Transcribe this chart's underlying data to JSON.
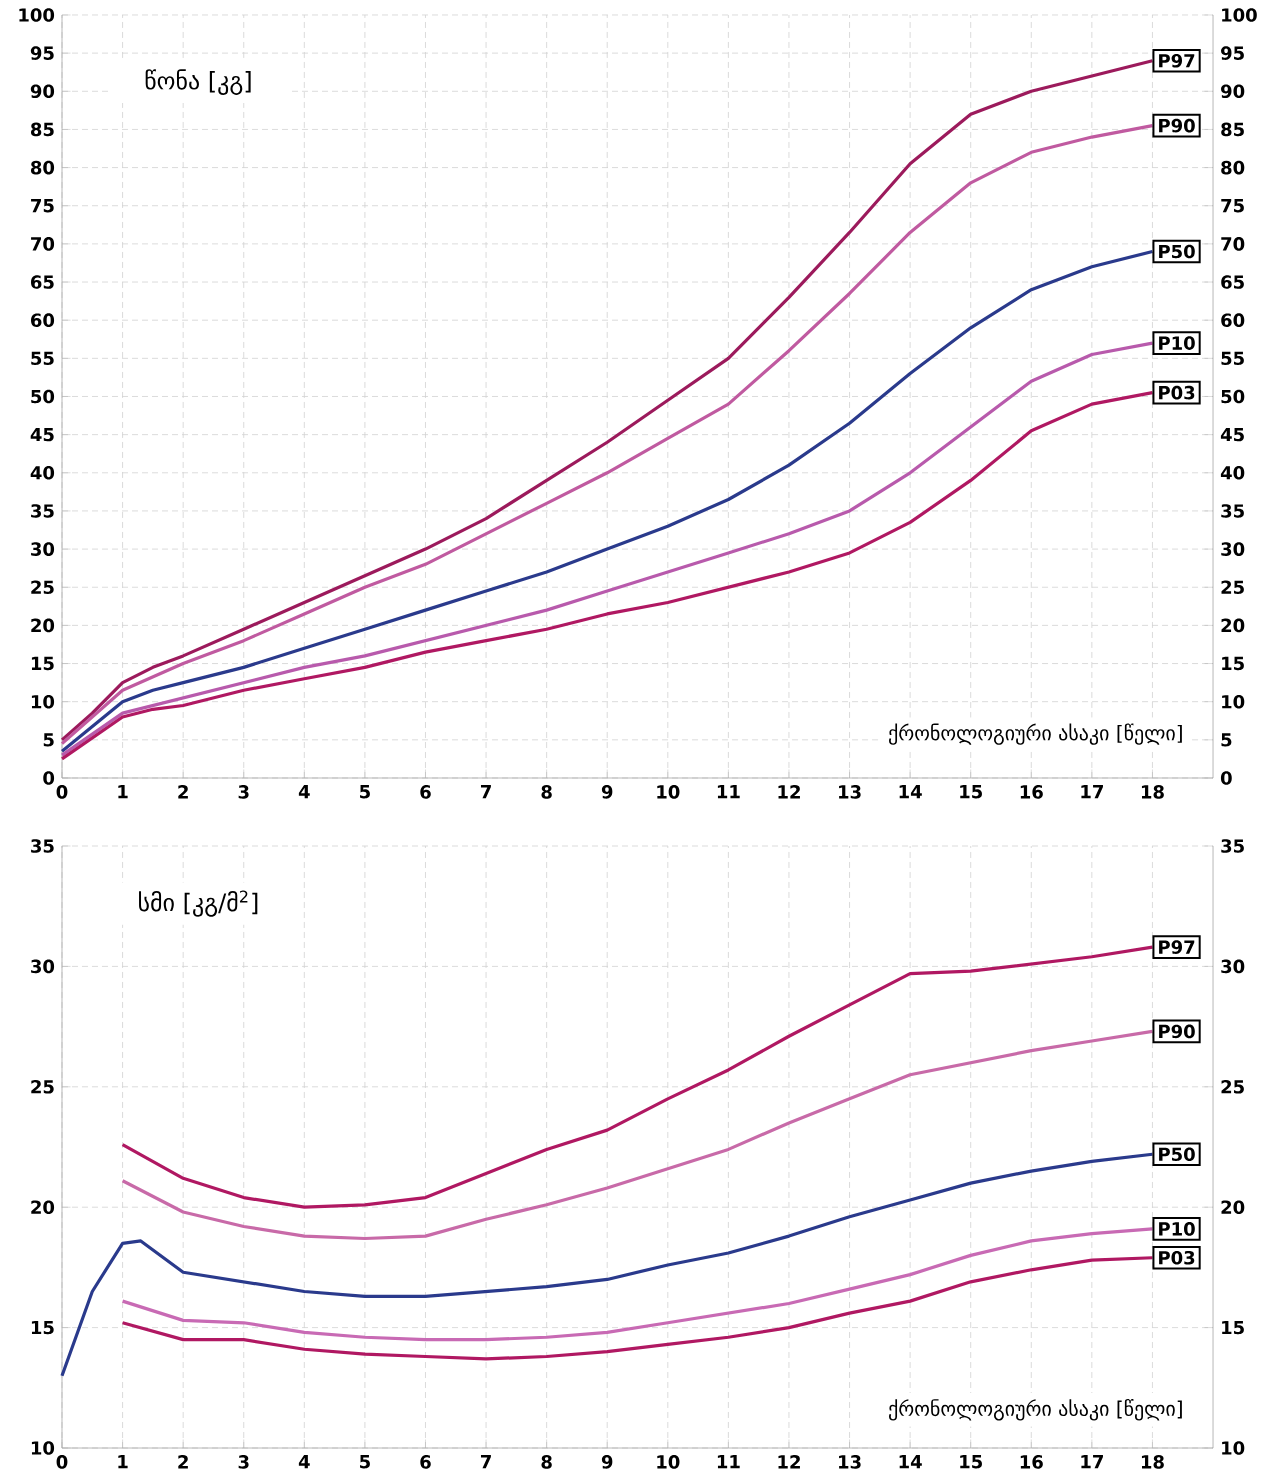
{
  "chart_data": [
    {
      "type": "line",
      "ylabel": "წონა [კგ]",
      "xlabel": "ქრონოლოგიური ასაკი [წელი]",
      "xlim": [
        0,
        19
      ],
      "xticks": [
        0,
        1,
        2,
        3,
        4,
        5,
        6,
        7,
        8,
        9,
        10,
        11,
        12,
        13,
        14,
        15,
        16,
        17,
        18
      ],
      "ylim": [
        0,
        100
      ],
      "yticks": [
        0,
        5,
        10,
        15,
        20,
        25,
        30,
        35,
        40,
        45,
        50,
        55,
        60,
        65,
        70,
        75,
        80,
        85,
        90,
        95,
        100
      ],
      "y2lim": [
        0,
        100
      ],
      "y2ticks": [
        0,
        5,
        10,
        15,
        20,
        25,
        30,
        35,
        40,
        45,
        50,
        55,
        60,
        65,
        70,
        75,
        80,
        85,
        90,
        95,
        100
      ],
      "grid": true,
      "series": [
        {
          "name": "P97",
          "color": "#9c1a5c",
          "x": [
            0,
            0.5,
            1,
            1.5,
            2,
            3,
            4,
            5,
            6,
            7,
            8,
            9,
            10,
            11,
            12,
            13,
            14,
            15,
            16,
            17,
            18
          ],
          "values": [
            5,
            8.5,
            12.5,
            14.5,
            16,
            19.5,
            23,
            26.5,
            30,
            34,
            39,
            44,
            49.5,
            55,
            63,
            71.5,
            80.5,
            87,
            90,
            92,
            94
          ]
        },
        {
          "name": "P90",
          "color": "#c05aa0",
          "x": [
            0,
            1,
            2,
            3,
            4,
            5,
            6,
            7,
            8,
            9,
            10,
            11,
            12,
            13,
            14,
            15,
            16,
            17,
            18
          ],
          "values": [
            4.5,
            11.5,
            15,
            18,
            21.5,
            25,
            28,
            32,
            36,
            40,
            44.5,
            49,
            56,
            63.5,
            71.5,
            78,
            82,
            84,
            85.5
          ]
        },
        {
          "name": "P50",
          "color": "#2a3a8c",
          "x": [
            0,
            1,
            1.5,
            2,
            3,
            4,
            5,
            6,
            7,
            8,
            9,
            10,
            11,
            12,
            13,
            14,
            15,
            16,
            17,
            18
          ],
          "values": [
            3.5,
            10,
            11.5,
            12.5,
            14.5,
            17,
            19.5,
            22,
            24.5,
            27,
            30,
            33,
            36.5,
            41,
            46.5,
            53,
            59,
            64,
            67,
            69
          ]
        },
        {
          "name": "P10",
          "color": "#b85aac",
          "x": [
            0,
            1,
            2,
            3,
            4,
            5,
            6,
            7,
            8,
            9,
            10,
            11,
            12,
            13,
            14,
            15,
            16,
            17,
            18
          ],
          "values": [
            3,
            8.5,
            10.5,
            12.5,
            14.5,
            16,
            18,
            20,
            22,
            24.5,
            27,
            29.5,
            32,
            35,
            40,
            46,
            52,
            55.5,
            57
          ]
        },
        {
          "name": "P03",
          "color": "#b01862",
          "x": [
            0,
            1,
            1.5,
            2,
            3,
            4,
            5,
            6,
            7,
            8,
            9,
            10,
            11,
            12,
            13,
            14,
            15,
            16,
            17,
            18
          ],
          "values": [
            2.5,
            8,
            9,
            9.5,
            11.5,
            13,
            14.5,
            16.5,
            18,
            19.5,
            21.5,
            23,
            25,
            27,
            29.5,
            33.5,
            39,
            45.5,
            49,
            50.5
          ]
        }
      ]
    },
    {
      "type": "line",
      "ylabel": "სმი [კგ/მ$^{2}$]",
      "xlabel": "ქრონოლოგიური ასაკი [წელი]",
      "xlim": [
        0,
        19
      ],
      "xticks": [
        0,
        1,
        2,
        3,
        4,
        5,
        6,
        7,
        8,
        9,
        10,
        11,
        12,
        13,
        14,
        15,
        16,
        17,
        18
      ],
      "ylim": [
        10,
        35
      ],
      "yticks": [
        10,
        15,
        20,
        25,
        30,
        35
      ],
      "y2lim": [
        10,
        35
      ],
      "y2ticks": [
        10,
        15,
        20,
        25,
        30,
        35
      ],
      "grid": true,
      "series": [
        {
          "name": "P97",
          "color": "#b01862",
          "x": [
            1,
            2,
            3,
            4,
            5,
            6,
            7,
            8,
            9,
            10,
            11,
            12,
            13,
            14,
            15,
            16,
            17,
            18
          ],
          "values": [
            22.6,
            21.2,
            20.4,
            20.0,
            20.1,
            20.4,
            21.4,
            22.4,
            23.2,
            24.5,
            25.7,
            27.1,
            28.4,
            29.7,
            29.8,
            30.1,
            30.4,
            30.8
          ]
        },
        {
          "name": "P90",
          "color": "#c86aa8",
          "x": [
            1,
            2,
            3,
            4,
            5,
            6,
            7,
            8,
            9,
            10,
            11,
            12,
            13,
            14,
            15,
            16,
            17,
            18
          ],
          "values": [
            21.1,
            19.8,
            19.2,
            18.8,
            18.7,
            18.8,
            19.5,
            20.1,
            20.8,
            21.6,
            22.4,
            23.5,
            24.5,
            25.5,
            26.0,
            26.5,
            26.9,
            27.3
          ]
        },
        {
          "name": "P50",
          "color": "#2a3a8c",
          "x": [
            0,
            0.5,
            1,
            1.3,
            2,
            3,
            4,
            5,
            6,
            7,
            8,
            9,
            10,
            11,
            12,
            13,
            14,
            15,
            16,
            17,
            18
          ],
          "values": [
            13.0,
            16.5,
            18.5,
            18.6,
            17.3,
            16.9,
            16.5,
            16.3,
            16.3,
            16.5,
            16.7,
            17.0,
            17.6,
            18.1,
            18.8,
            19.6,
            20.3,
            21.0,
            21.5,
            21.9,
            22.2
          ]
        },
        {
          "name": "P10",
          "color": "#c86ab4",
          "x": [
            1,
            2,
            3,
            4,
            5,
            6,
            7,
            8,
            9,
            10,
            11,
            12,
            13,
            14,
            15,
            16,
            17,
            18
          ],
          "values": [
            16.1,
            15.3,
            15.2,
            14.8,
            14.6,
            14.5,
            14.5,
            14.6,
            14.8,
            15.2,
            15.6,
            16.0,
            16.6,
            17.2,
            18.0,
            18.6,
            18.9,
            19.1
          ]
        },
        {
          "name": "P03",
          "color": "#b01862",
          "x": [
            1,
            2,
            3,
            4,
            5,
            6,
            7,
            8,
            9,
            10,
            11,
            12,
            13,
            14,
            15,
            16,
            17,
            18
          ],
          "values": [
            15.2,
            14.5,
            14.5,
            14.1,
            13.9,
            13.8,
            13.7,
            13.8,
            14.0,
            14.3,
            14.6,
            15.0,
            15.6,
            16.1,
            16.9,
            17.4,
            17.8,
            17.9
          ]
        }
      ]
    }
  ]
}
